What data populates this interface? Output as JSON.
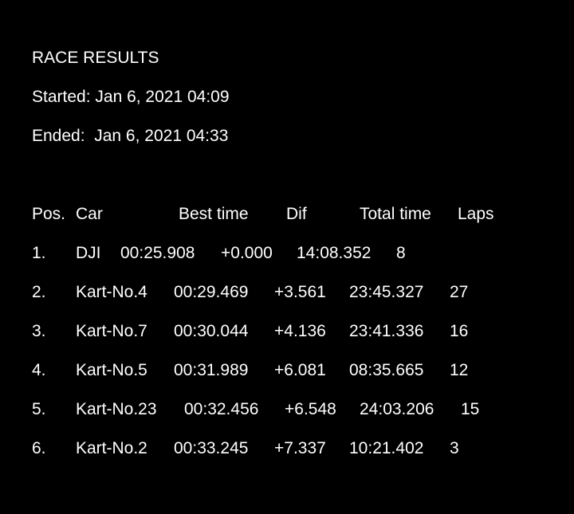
{
  "report": {
    "title": "RACE RESULTS",
    "started_label": "Started:",
    "started_value": "Jan 6, 2021 04:09",
    "ended_label": "Ended:",
    "ended_value": "Jan 6, 2021 04:33"
  },
  "table": {
    "headers": {
      "pos": "Pos.",
      "car": "Car",
      "best": "Best time",
      "dif": "Dif",
      "total": "Total time",
      "laps": "Laps"
    },
    "rows": [
      {
        "pos": "1.",
        "car": "DJI",
        "best": "00:25.908",
        "dif": "+0.000",
        "total": "14:08.352",
        "laps": "8"
      },
      {
        "pos": "2.",
        "car": "Kart-No.4",
        "best": "00:29.469",
        "dif": "+3.561",
        "total": "23:45.327",
        "laps": "27"
      },
      {
        "pos": "3.",
        "car": "Kart-No.7",
        "best": "00:30.044",
        "dif": "+4.136",
        "total": "23:41.336",
        "laps": "16"
      },
      {
        "pos": "4.",
        "car": "Kart-No.5",
        "best": "00:31.989",
        "dif": "+6.081",
        "total": "08:35.665",
        "laps": "12"
      },
      {
        "pos": "5.",
        "car": "Kart-No.23",
        "best": "00:32.456",
        "dif": "+6.548",
        "total": "24:03.206",
        "laps": "15"
      },
      {
        "pos": "6.",
        "car": "Kart-No.2",
        "best": "00:33.245",
        "dif": "+7.337",
        "total": "10:21.402",
        "laps": "3"
      }
    ]
  }
}
